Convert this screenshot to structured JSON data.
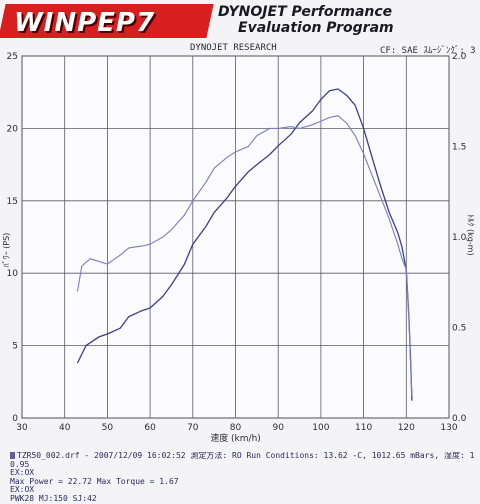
{
  "header": {
    "logo": "WINPEP7",
    "tagline_line1": "DYNOJET Performance",
    "tagline_line2": "Evaluation Program",
    "title": "DYNOJET RESEARCH",
    "right": "CF: SAE  ｽﾑｰｼﾞﾝｸﾞ: 3"
  },
  "chart_data": {
    "type": "line",
    "xlabel": "速度 (km/h)",
    "ylabel_left": "ﾊﾟﾜｰ (PS)",
    "ylabel_right": "ﾄﾙｸ (kg-m)",
    "xlim": [
      30,
      130
    ],
    "ylim_left": [
      0,
      25
    ],
    "ylim_right": [
      0,
      2.0
    ],
    "x_ticks": [
      "30",
      "40",
      "50",
      "60",
      "70",
      "80",
      "90",
      "100",
      "110",
      "120",
      "130"
    ],
    "y_ticks_left": [
      "0",
      "5",
      "10",
      "15",
      "20",
      "25"
    ],
    "y_ticks_right": [
      "0.0",
      "0.5",
      "1.0",
      "1.5",
      "2.0"
    ],
    "grid": true,
    "series": [
      {
        "axis": "left",
        "color": "#3b3f8c",
        "points": [
          [
            43,
            3.8
          ],
          [
            45,
            5.0
          ],
          [
            48,
            5.6
          ],
          [
            50,
            5.8
          ],
          [
            53,
            6.2
          ],
          [
            55,
            7.0
          ],
          [
            58,
            7.4
          ],
          [
            60,
            7.6
          ],
          [
            63,
            8.4
          ],
          [
            65,
            9.2
          ],
          [
            68,
            10.6
          ],
          [
            70,
            12.0
          ],
          [
            73,
            13.2
          ],
          [
            75,
            14.2
          ],
          [
            78,
            15.2
          ],
          [
            80,
            16.0
          ],
          [
            83,
            17.0
          ],
          [
            85,
            17.5
          ],
          [
            88,
            18.2
          ],
          [
            90,
            18.8
          ],
          [
            93,
            19.6
          ],
          [
            95,
            20.4
          ],
          [
            98,
            21.2
          ],
          [
            100,
            22.0
          ],
          [
            102,
            22.6
          ],
          [
            104,
            22.72
          ],
          [
            106,
            22.3
          ],
          [
            108,
            21.6
          ],
          [
            110,
            20.0
          ],
          [
            112,
            18.0
          ],
          [
            114,
            16.0
          ],
          [
            116,
            14.2
          ],
          [
            118,
            12.8
          ],
          [
            119,
            11.8
          ],
          [
            120,
            10.2
          ],
          [
            120.6,
            7.0
          ],
          [
            121,
            4.0
          ],
          [
            121.3,
            1.2
          ]
        ]
      },
      {
        "axis": "right",
        "color": "#7a7cc4",
        "points": [
          [
            43,
            0.7
          ],
          [
            44,
            0.84
          ],
          [
            46,
            0.88
          ],
          [
            50,
            0.85
          ],
          [
            53,
            0.9
          ],
          [
            55,
            0.94
          ],
          [
            58,
            0.95
          ],
          [
            60,
            0.96
          ],
          [
            63,
            1.0
          ],
          [
            65,
            1.04
          ],
          [
            68,
            1.12
          ],
          [
            70,
            1.2
          ],
          [
            73,
            1.3
          ],
          [
            75,
            1.38
          ],
          [
            78,
            1.44
          ],
          [
            80,
            1.47
          ],
          [
            83,
            1.5
          ],
          [
            85,
            1.56
          ],
          [
            88,
            1.6
          ],
          [
            90,
            1.6
          ],
          [
            93,
            1.61
          ],
          [
            95,
            1.6
          ],
          [
            98,
            1.62
          ],
          [
            100,
            1.64
          ],
          [
            102,
            1.66
          ],
          [
            104,
            1.67
          ],
          [
            106,
            1.63
          ],
          [
            108,
            1.56
          ],
          [
            110,
            1.46
          ],
          [
            112,
            1.34
          ],
          [
            114,
            1.22
          ],
          [
            116,
            1.1
          ],
          [
            118,
            0.96
          ],
          [
            119,
            0.88
          ],
          [
            120,
            0.82
          ],
          [
            120.6,
            0.55
          ],
          [
            121,
            0.3
          ],
          [
            121.3,
            0.12
          ]
        ]
      }
    ]
  },
  "footer": {
    "line1": "TZR50_002.drf - 2007/12/09 16:02:52  測定方法: RO  Run Conditions: 13.62 -C, 1012.65 mBars,  湿度: 11%, SAE:",
    "line2": "0.95",
    "line3": "EX:OX",
    "line4": "Max Power = 22.72  Max Torque = 1.67",
    "line5": "EX:OX",
    "line6": "PWK28 MJ:150 SJ:42"
  }
}
